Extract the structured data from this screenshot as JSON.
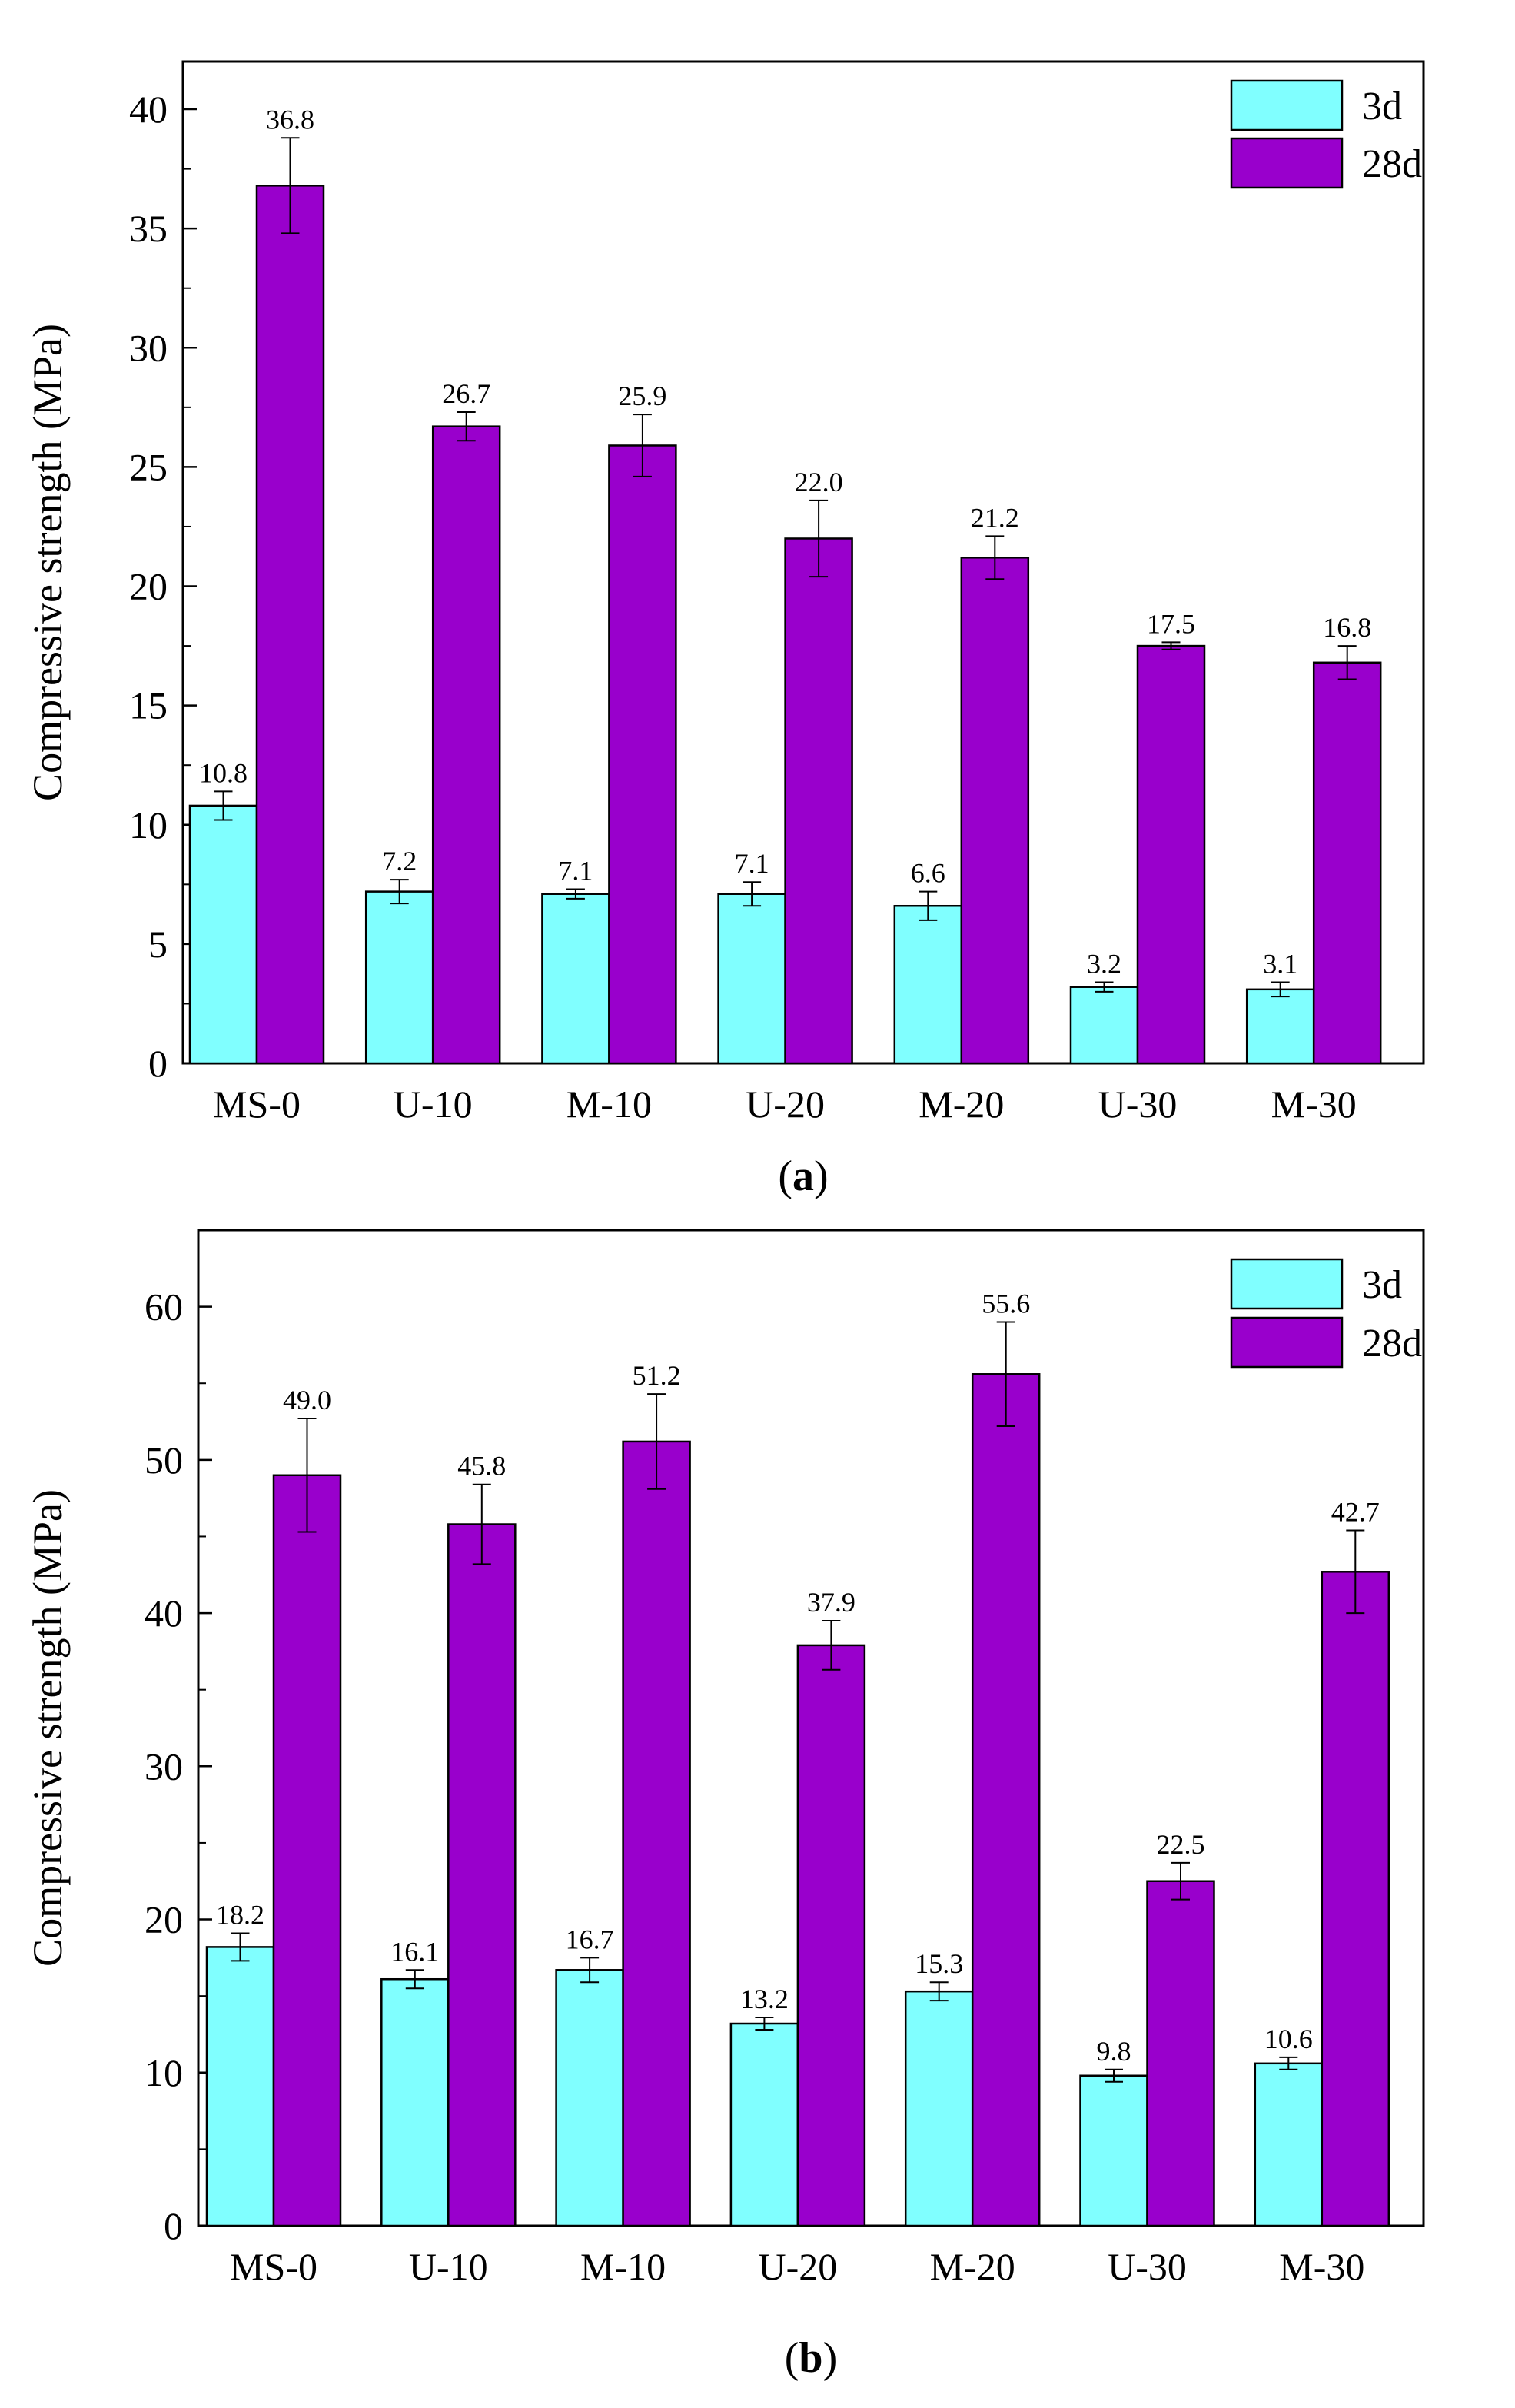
{
  "figure": {
    "colors": {
      "series_3d": "#80FFFF",
      "series_28d": "#9900CC",
      "axis": "#000000"
    }
  },
  "chart_data": [
    {
      "type": "bar",
      "panel_label": "(a)",
      "panel_letter": "a",
      "categories": [
        "MS-0",
        "U-10",
        "M-10",
        "U-20",
        "M-20",
        "U-30",
        "M-30"
      ],
      "ylabel": "Compressive strength (MPa)",
      "xlabel": "",
      "ylim": [
        0,
        42
      ],
      "yticks": [
        0,
        5,
        10,
        15,
        20,
        25,
        30,
        35,
        40
      ],
      "ytick_labels": [
        "0",
        "5",
        "10",
        "15",
        "20",
        "25",
        "30",
        "35",
        "40"
      ],
      "minor_tick_step": 2.5,
      "legend_position": "top-right",
      "series": [
        {
          "name": "3d",
          "values": [
            10.8,
            7.2,
            7.1,
            7.1,
            6.6,
            3.2,
            3.1
          ],
          "labels": [
            "10.8",
            "7.2",
            "7.1",
            "7.1",
            "6.6",
            "3.2",
            "3.1"
          ],
          "errors": [
            0.6,
            0.5,
            0.2,
            0.5,
            0.6,
            0.2,
            0.3
          ]
        },
        {
          "name": "28d",
          "values": [
            36.8,
            26.7,
            25.9,
            22.0,
            21.2,
            17.5,
            16.8
          ],
          "labels": [
            "36.8",
            "26.7",
            "25.9",
            "22.0",
            "21.2",
            "17.5",
            "16.8"
          ],
          "errors": [
            2.0,
            0.6,
            1.3,
            1.6,
            0.9,
            0.15,
            0.7
          ]
        }
      ]
    },
    {
      "type": "bar",
      "panel_label": "(b)",
      "panel_letter": "b",
      "categories": [
        "MS-0",
        "U-10",
        "M-10",
        "U-20",
        "M-20",
        "U-30",
        "M-30"
      ],
      "ylabel": "Compressive strength (MPa)",
      "xlabel": "",
      "ylim": [
        0,
        65
      ],
      "yticks": [
        0,
        10,
        20,
        30,
        40,
        50,
        60
      ],
      "ytick_labels": [
        "0",
        "10",
        "20",
        "30",
        "40",
        "50",
        "60"
      ],
      "minor_tick_step": 5,
      "legend_position": "top-right",
      "series": [
        {
          "name": "3d",
          "values": [
            18.2,
            16.1,
            16.7,
            13.2,
            15.3,
            9.8,
            10.6
          ],
          "labels": [
            "18.2",
            "16.1",
            "16.7",
            "13.2",
            "15.3",
            "9.8",
            "10.6"
          ],
          "errors": [
            0.9,
            0.6,
            0.8,
            0.4,
            0.6,
            0.4,
            0.4
          ]
        },
        {
          "name": "28d",
          "values": [
            49.0,
            45.8,
            51.2,
            37.9,
            55.6,
            22.5,
            42.7
          ],
          "labels": [
            "49.0",
            "45.8",
            "51.2",
            "37.9",
            "55.6",
            "22.5",
            "42.7"
          ],
          "errors": [
            3.7,
            2.6,
            3.1,
            1.6,
            3.4,
            1.2,
            2.7
          ]
        }
      ]
    }
  ]
}
